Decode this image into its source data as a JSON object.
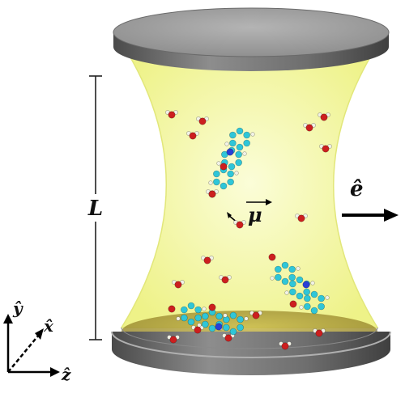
{
  "labels": {
    "cavity_length": "L",
    "polarization": "ê",
    "dipole": "μ",
    "axis_y": "ŷ",
    "axis_x": "x̂",
    "axis_z": "ẑ"
  },
  "colors": {
    "mirror_top": "#9a9a9a",
    "mirror_side": "#5e5e5e",
    "light_field": "#f1f59a",
    "light_edge": "#e4ea7a",
    "carbon_atom": "#2fc6d8",
    "oxygen_atom": "#cc1f1f",
    "nitrogen_atom": "#2a3fd6",
    "hydrogen_atom": "#f2f2e6",
    "arrow": "#000000"
  }
}
